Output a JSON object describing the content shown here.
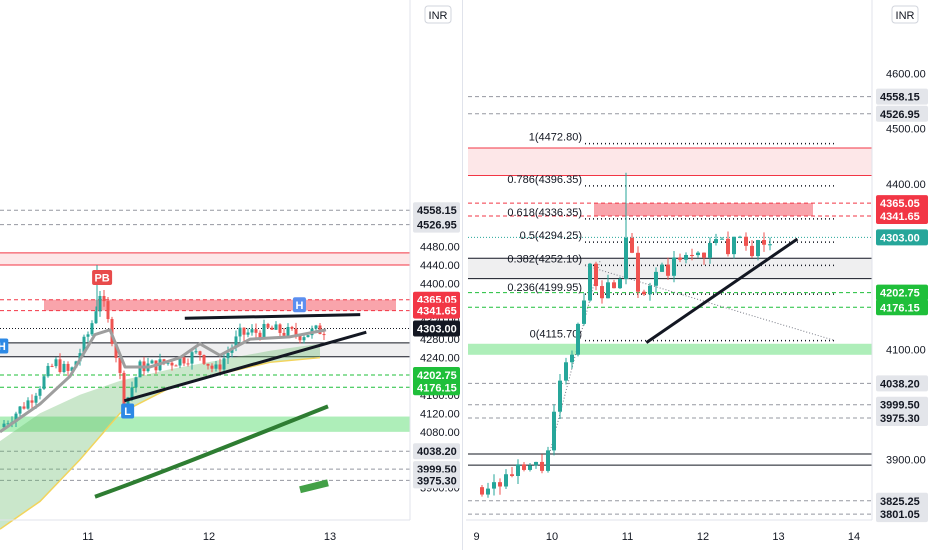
{
  "chart_data": [
    {
      "type": "candlestick",
      "currency_badge": "INR",
      "y_ticks": [
        3960,
        4040,
        4080,
        4120,
        4160,
        4240,
        4280,
        4320,
        4400,
        4440,
        4480
      ],
      "y_tick_labels": [
        "3960.00",
        "4040.00",
        "4080.00",
        "4120.00",
        "4160.00",
        "4240.00",
        "4280.00",
        "4320.00",
        "4400.00",
        "4440.00",
        "4480.00"
      ],
      "x_ticks": [
        "11",
        "12",
        "13"
      ],
      "price_tags": [
        {
          "value": 4558.15,
          "label": "4558.15",
          "style": "gray"
        },
        {
          "value": 4526.95,
          "label": "4526.95",
          "style": "gray"
        },
        {
          "value": 4365.05,
          "label": "4365.05",
          "style": "red"
        },
        {
          "value": 4341.65,
          "label": "4341.65",
          "style": "red"
        },
        {
          "value": 4303.0,
          "label": "4303.00",
          "style": "black"
        },
        {
          "value": 4202.75,
          "label": "4202.75",
          "style": "green"
        },
        {
          "value": 4176.15,
          "label": "4176.15",
          "style": "green"
        },
        {
          "value": 4038.2,
          "label": "4038.20",
          "style": "gray"
        },
        {
          "value": 3999.5,
          "label": "3999.50",
          "style": "gray"
        },
        {
          "value": 3975.3,
          "label": "3975.30",
          "style": "gray"
        }
      ],
      "markers": [
        {
          "label": "PB",
          "x": 1.1,
          "y": 4412,
          "color": "#e84b4b"
        },
        {
          "label": "H",
          "x": 0.3,
          "y": 4264,
          "color": "#2d89e5"
        },
        {
          "label": "H",
          "x": 2.76,
          "y": 4353,
          "color": "#5b8ff0"
        },
        {
          "label": "L",
          "x": 1.34,
          "y": 4124,
          "color": "#2d89e5"
        }
      ],
      "zones": [
        {
          "type": "resistance",
          "low": 4440,
          "high": 4466
        },
        {
          "type": "supply",
          "low": 4341.65,
          "high": 4365.05
        },
        {
          "type": "demand",
          "low": 4080,
          "high": 4113
        },
        {
          "type": "consolidation",
          "low": 4242,
          "high": 4272
        }
      ],
      "trendlines": [
        {
          "from": [
            1.8,
            4325
          ],
          "to": [
            3.25,
            4333
          ]
        },
        {
          "from": [
            1.3,
            4147
          ],
          "to": [
            3.3,
            4295
          ]
        }
      ]
    },
    {
      "type": "candlestick",
      "currency_badge": "INR",
      "y_ticks": [
        3900,
        4100,
        4400,
        4500,
        4600
      ],
      "y_tick_labels": [
        "3900.00",
        "4100.00",
        "4400.00",
        "4500.00",
        "4600.00"
      ],
      "x_ticks": [
        "9",
        "10",
        "11",
        "12",
        "13",
        "14"
      ],
      "price_tags": [
        {
          "value": 4558.15,
          "label": "4558.15",
          "style": "gray"
        },
        {
          "value": 4526.95,
          "label": "4526.95",
          "style": "gray"
        },
        {
          "value": 4365.05,
          "label": "4365.05",
          "style": "red"
        },
        {
          "value": 4341.65,
          "label": "4341.65",
          "style": "red"
        },
        {
          "value": 4303.0,
          "label": "4303.00",
          "style": "teal"
        },
        {
          "value": 4202.75,
          "label": "4202.75",
          "style": "green"
        },
        {
          "value": 4176.15,
          "label": "4176.15",
          "style": "green"
        },
        {
          "value": 4038.2,
          "label": "4038.20",
          "style": "gray"
        },
        {
          "value": 3999.5,
          "label": "3999.50",
          "style": "gray"
        },
        {
          "value": 3975.3,
          "label": "3975.30",
          "style": "gray"
        },
        {
          "value": 3825.25,
          "label": "3825.25",
          "style": "gray"
        },
        {
          "value": 3801.05,
          "label": "3801.05",
          "style": "gray"
        }
      ],
      "fibonacci": [
        {
          "label": "1(4472.80)",
          "value": 4472.8
        },
        {
          "label": "0.786(4396.35)",
          "value": 4396.35
        },
        {
          "label": "0.618(4336.35)",
          "value": 4336.35
        },
        {
          "label": "0.5(4294.25)",
          "value": 4294.25
        },
        {
          "label": "0.382(4252.10)",
          "value": 4252.1
        },
        {
          "label": "0.236(4199.95)",
          "value": 4199.95
        },
        {
          "label": "0(4115.70)",
          "value": 4115.7
        }
      ],
      "zones": [
        {
          "type": "resistance",
          "low": 4415,
          "high": 4465
        },
        {
          "type": "supply",
          "low": 4341.65,
          "high": 4365.05
        },
        {
          "type": "demand",
          "low": 4090,
          "high": 4110
        },
        {
          "type": "consolidation",
          "low": 4228,
          "high": 4265
        }
      ],
      "trendlines": [
        {
          "from": [
            11.25,
            4112
          ],
          "to": [
            13.25,
            4300
          ]
        }
      ]
    }
  ]
}
